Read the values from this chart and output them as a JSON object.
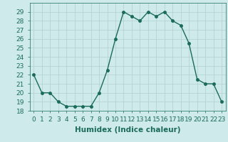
{
  "x": [
    0,
    1,
    2,
    3,
    4,
    5,
    6,
    7,
    8,
    9,
    10,
    11,
    12,
    13,
    14,
    15,
    16,
    17,
    18,
    19,
    20,
    21,
    22,
    23
  ],
  "y": [
    22,
    20,
    20,
    19,
    18.5,
    18.5,
    18.5,
    18.5,
    20,
    22.5,
    26,
    29,
    28.5,
    28,
    29,
    28.5,
    29,
    28,
    27.5,
    25.5,
    21.5,
    21,
    21,
    19
  ],
  "line_color": "#1a6b5a",
  "marker": "o",
  "marker_size": 2.5,
  "bg_color": "#ceeaea",
  "grid_color": "#b0d0d0",
  "xlabel": "Humidex (Indice chaleur)",
  "xlabel_fontsize": 7.5,
  "ylim": [
    18,
    30
  ],
  "xlim": [
    -0.5,
    23.5
  ],
  "yticks": [
    18,
    19,
    20,
    21,
    22,
    23,
    24,
    25,
    26,
    27,
    28,
    29
  ],
  "xticks": [
    0,
    1,
    2,
    3,
    4,
    5,
    6,
    7,
    8,
    9,
    10,
    11,
    12,
    13,
    14,
    15,
    16,
    17,
    18,
    19,
    20,
    21,
    22,
    23
  ],
  "tick_fontsize": 6.5,
  "line_width": 1.0
}
